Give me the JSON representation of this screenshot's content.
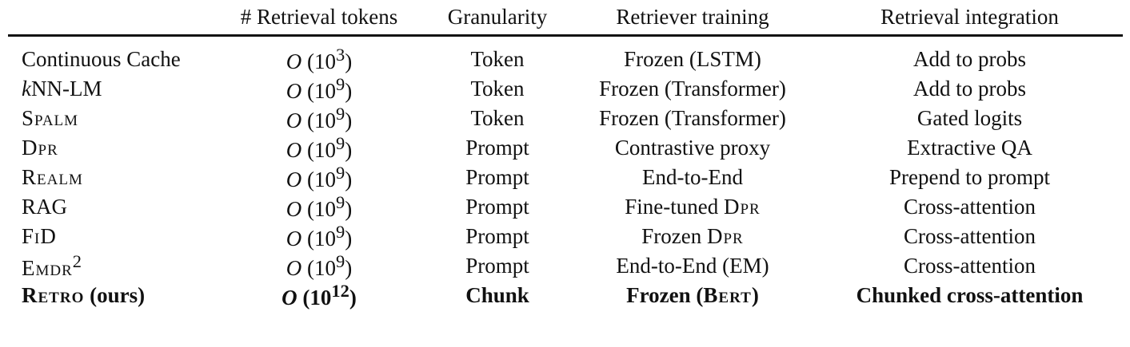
{
  "headers": [
    "",
    "# Retrieval tokens",
    "Granularity",
    "Retriever training",
    "Retrieval integration"
  ],
  "rows": [
    {
      "model": "Continuous Cache",
      "tokens_prefix": "O",
      "tokens_base": "10",
      "tokens_exp": "3",
      "granularity": "Token",
      "training": "Frozen (LSTM)",
      "integration": "Add to probs"
    },
    {
      "model_k": "k",
      "model_rest": "NN-LM",
      "tokens_prefix": "O",
      "tokens_base": "10",
      "tokens_exp": "9",
      "granularity": "Token",
      "training": "Frozen (Transformer)",
      "integration": "Add to probs"
    },
    {
      "model": "Spalm",
      "tokens_prefix": "O",
      "tokens_base": "10",
      "tokens_exp": "9",
      "granularity": "Token",
      "training": "Frozen (Transformer)",
      "integration": "Gated logits"
    },
    {
      "model": "Dpr",
      "tokens_prefix": "O",
      "tokens_base": "10",
      "tokens_exp": "9",
      "granularity": "Prompt",
      "training": "Contrastive proxy",
      "integration": "Extractive QA"
    },
    {
      "model": "Realm",
      "tokens_prefix": "O",
      "tokens_base": "10",
      "tokens_exp": "9",
      "granularity": "Prompt",
      "training": "End-to-End",
      "integration": "Prepend to prompt"
    },
    {
      "model": "RAG",
      "tokens_prefix": "O",
      "tokens_base": "10",
      "tokens_exp": "9",
      "granularity": "Prompt",
      "training_main": "Fine-tuned ",
      "training_sc": "Dpr",
      "integration": "Cross-attention"
    },
    {
      "model": "FiD",
      "tokens_prefix": "O",
      "tokens_base": "10",
      "tokens_exp": "9",
      "granularity": "Prompt",
      "training_main": "Frozen ",
      "training_sc": "Dpr",
      "integration": "Cross-attention"
    },
    {
      "model": "Emdr",
      "model_sup": "2",
      "tokens_prefix": "O",
      "tokens_base": "10",
      "tokens_exp": "9",
      "granularity": "Prompt",
      "training": "End-to-End (EM)",
      "integration": "Cross-attention"
    },
    {
      "model_sc": "Retro",
      "model_rest": " (ours)",
      "tokens_prefix": "O",
      "tokens_base": "10",
      "tokens_exp": "12",
      "granularity": "Chunk",
      "training_main": "Frozen (",
      "training_sc": "Bert",
      "training_end": ")",
      "integration": "Chunked cross-attention"
    }
  ]
}
